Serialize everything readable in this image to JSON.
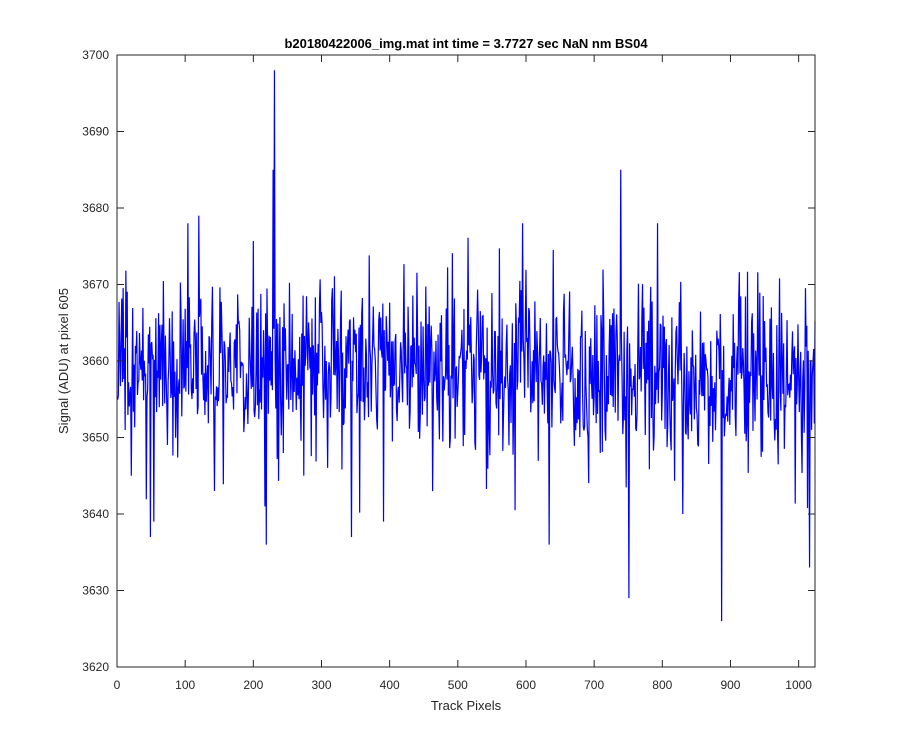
{
  "chart_data": {
    "type": "line",
    "title": "b20180422006_img.mat int time = 3.7727 sec  NaN nm BS04",
    "xlabel": "Track Pixels",
    "ylabel": "Signal (ADU) at pixel 605",
    "xlim": [
      0,
      1024
    ],
    "ylim": [
      3620,
      3700
    ],
    "xticks": [
      0,
      100,
      200,
      300,
      400,
      500,
      600,
      700,
      800,
      900,
      1000
    ],
    "yticks": [
      3620,
      3630,
      3640,
      3650,
      3660,
      3670,
      3680,
      3690,
      3700
    ],
    "grid": false,
    "line_color": "#0000ff",
    "series": [
      {
        "x_start": 1,
        "x_step": 1,
        "summary": {
          "baseline": 3659,
          "min": 3626,
          "max": 3698
        },
        "notable_points": [
          {
            "x": 21,
            "y": 3645
          },
          {
            "x": 49,
            "y": 3637
          },
          {
            "x": 54,
            "y": 3639
          },
          {
            "x": 120,
            "y": 3679
          },
          {
            "x": 217,
            "y": 3641
          },
          {
            "x": 219,
            "y": 3636
          },
          {
            "x": 229,
            "y": 3685
          },
          {
            "x": 231,
            "y": 3698
          },
          {
            "x": 344,
            "y": 3637
          },
          {
            "x": 391,
            "y": 3639
          },
          {
            "x": 595,
            "y": 3678
          },
          {
            "x": 634,
            "y": 3636
          },
          {
            "x": 739,
            "y": 3685
          },
          {
            "x": 751,
            "y": 3629
          },
          {
            "x": 830,
            "y": 3640
          },
          {
            "x": 887,
            "y": 3626
          },
          {
            "x": 1016,
            "y": 3633
          }
        ]
      }
    ]
  }
}
